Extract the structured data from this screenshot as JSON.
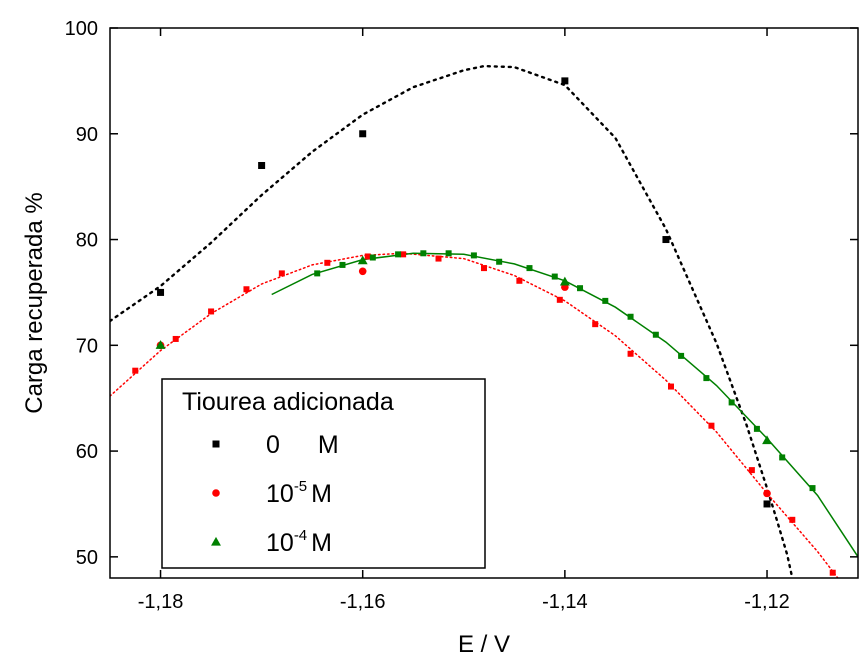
{
  "chart_data": {
    "type": "scatter",
    "xlabel": "E / V",
    "ylabel": "Carga recuperada %",
    "xlim": [
      -1.185,
      -1.111
    ],
    "ylim": [
      48,
      100
    ],
    "x_ticks": [
      -1.18,
      -1.16,
      -1.14,
      -1.12
    ],
    "x_tick_labels": [
      "-1,18",
      "-1,16",
      "-1,14",
      "-1,12"
    ],
    "y_ticks": [
      50,
      60,
      70,
      80,
      90,
      100
    ],
    "y_tick_labels": [
      "50",
      "60",
      "70",
      "80",
      "90",
      "100"
    ],
    "grid": false,
    "legend": {
      "title": "Tiourea adicionada",
      "placement": "bottom-left"
    },
    "series": [
      {
        "name": "0 M",
        "legend_label": "0    M",
        "legend_base": "0",
        "legend_exp": "",
        "legend_unit": "M",
        "color": "#000000",
        "marker": "square",
        "fit_style": "dotted",
        "points": [
          {
            "x": -1.18,
            "y": 75
          },
          {
            "x": -1.17,
            "y": 87
          },
          {
            "x": -1.16,
            "y": 90
          },
          {
            "x": -1.14,
            "y": 95
          },
          {
            "x": -1.13,
            "y": 80
          },
          {
            "x": -1.12,
            "y": 55
          }
        ],
        "fit": [
          [
            -1.185,
            72.3
          ],
          [
            -1.18,
            75.6
          ],
          [
            -1.175,
            79.7
          ],
          [
            -1.17,
            84.2
          ],
          [
            -1.165,
            88.3
          ],
          [
            -1.16,
            91.8
          ],
          [
            -1.155,
            94.4
          ],
          [
            -1.15,
            96.0
          ],
          [
            -1.148,
            96.4
          ],
          [
            -1.145,
            96.3
          ],
          [
            -1.14,
            94.6
          ],
          [
            -1.135,
            89.6
          ],
          [
            -1.13,
            81.0
          ],
          [
            -1.125,
            70.2
          ],
          [
            -1.122,
            62.4
          ],
          [
            -1.12,
            56.5
          ],
          [
            -1.119,
            53.4
          ],
          [
            -1.118,
            50.2
          ],
          [
            -1.1175,
            48.0
          ]
        ]
      },
      {
        "name": "10-5 M",
        "legend_label": "10-5 M",
        "legend_base": "10",
        "legend_exp": "-5",
        "legend_unit": "M",
        "color": "#ff0000",
        "marker": "circle",
        "fit_style": "dotted",
        "points": [
          {
            "x": -1.18,
            "y": 70
          },
          {
            "x": -1.16,
            "y": 77
          },
          {
            "x": -1.14,
            "y": 75.5
          },
          {
            "x": -1.12,
            "y": 56
          }
        ],
        "fit_points": [
          [
            -1.1825,
            67.6
          ],
          [
            -1.1785,
            70.6
          ],
          [
            -1.175,
            73.2
          ],
          [
            -1.1715,
            75.3
          ],
          [
            -1.168,
            76.8
          ],
          [
            -1.1635,
            77.8
          ],
          [
            -1.1595,
            78.4
          ],
          [
            -1.156,
            78.6
          ],
          [
            -1.1525,
            78.2
          ],
          [
            -1.148,
            77.3
          ],
          [
            -1.1445,
            76.1
          ],
          [
            -1.1405,
            74.3
          ],
          [
            -1.137,
            72.0
          ],
          [
            -1.1335,
            69.2
          ],
          [
            -1.1295,
            66.1
          ],
          [
            -1.1255,
            62.4
          ],
          [
            -1.1215,
            58.2
          ],
          [
            -1.1175,
            53.5
          ],
          [
            -1.1135,
            48.5
          ]
        ],
        "fit": [
          [
            -1.185,
            65.2
          ],
          [
            -1.18,
            69.5
          ],
          [
            -1.175,
            73.0
          ],
          [
            -1.17,
            75.8
          ],
          [
            -1.165,
            77.6
          ],
          [
            -1.16,
            78.5
          ],
          [
            -1.156,
            78.7
          ],
          [
            -1.15,
            78.2
          ],
          [
            -1.145,
            76.6
          ],
          [
            -1.14,
            74.2
          ],
          [
            -1.135,
            70.9
          ],
          [
            -1.13,
            66.7
          ],
          [
            -1.125,
            61.8
          ],
          [
            -1.12,
            56.0
          ],
          [
            -1.115,
            50.5
          ],
          [
            -1.113,
            48.0
          ]
        ]
      },
      {
        "name": "10-4 M",
        "legend_label": "10-4 M",
        "legend_base": "10",
        "legend_exp": "-4",
        "legend_unit": "M",
        "color": "#008000",
        "marker": "triangle",
        "fit_style": "solid",
        "points": [
          {
            "x": -1.18,
            "y": 70
          },
          {
            "x": -1.16,
            "y": 78
          },
          {
            "x": -1.14,
            "y": 76
          },
          {
            "x": -1.12,
            "y": 61
          }
        ],
        "fit_points": [
          [
            -1.1645,
            76.8
          ],
          [
            -1.162,
            77.6
          ],
          [
            -1.159,
            78.3
          ],
          [
            -1.1565,
            78.6
          ],
          [
            -1.154,
            78.7
          ],
          [
            -1.1515,
            78.7
          ],
          [
            -1.149,
            78.5
          ],
          [
            -1.1465,
            77.9
          ],
          [
            -1.1435,
            77.3
          ],
          [
            -1.141,
            76.5
          ],
          [
            -1.1385,
            75.4
          ],
          [
            -1.136,
            74.2
          ],
          [
            -1.1335,
            72.7
          ],
          [
            -1.131,
            71.0
          ],
          [
            -1.1285,
            69.0
          ],
          [
            -1.126,
            66.9
          ],
          [
            -1.1235,
            64.6
          ],
          [
            -1.121,
            62.1
          ],
          [
            -1.1185,
            59.4
          ],
          [
            -1.1155,
            56.5
          ]
        ],
        "fit": [
          [
            -1.169,
            74.8
          ],
          [
            -1.165,
            76.7
          ],
          [
            -1.16,
            78.1
          ],
          [
            -1.155,
            78.7
          ],
          [
            -1.15,
            78.6
          ],
          [
            -1.145,
            77.7
          ],
          [
            -1.14,
            76.1
          ],
          [
            -1.135,
            73.6
          ],
          [
            -1.13,
            70.3
          ],
          [
            -1.125,
            66.2
          ],
          [
            -1.12,
            61.2
          ],
          [
            -1.115,
            55.8
          ],
          [
            -1.111,
            50.0
          ]
        ]
      }
    ]
  }
}
